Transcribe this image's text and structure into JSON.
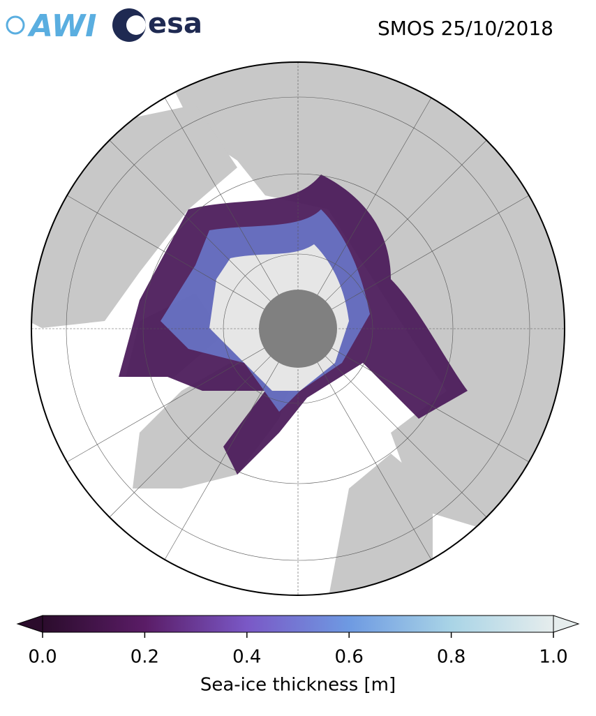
{
  "header": {
    "logos": [
      "AWI",
      "esa"
    ],
    "title": "SMOS 25/10/2018"
  },
  "colorbar": {
    "label": "Sea-ice thickness [m]",
    "lim": [
      0,
      1
    ],
    "ticks": [
      {
        "value": 0,
        "label": "0.0"
      },
      {
        "value": 0.2,
        "label": "0.2"
      },
      {
        "value": 0.4,
        "label": "0.4"
      },
      {
        "value": 0.6,
        "label": "0.6"
      },
      {
        "value": 0.8,
        "label": "0.8"
      },
      {
        "value": 1,
        "label": "1.0"
      }
    ],
    "colors": [
      "#2b0c2c",
      "#5a1c66",
      "#7a58c6",
      "#6e9ae2",
      "#a9d4e6",
      "#e6eded"
    ]
  }
}
